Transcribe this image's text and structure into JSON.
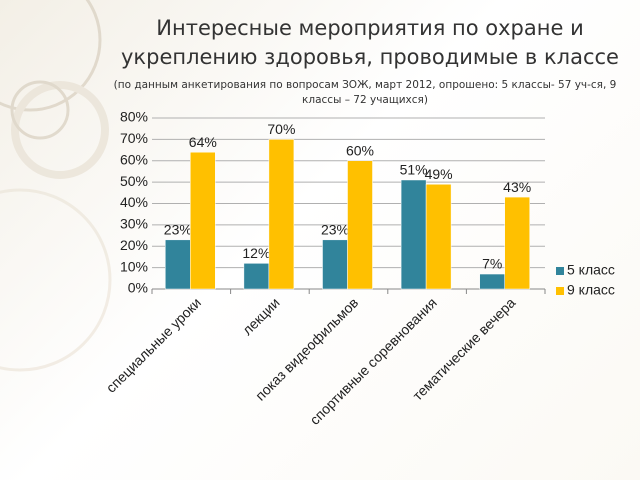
{
  "chart_data": {
    "type": "bar",
    "title": "Интересные мероприятия по охране и укреплению здоровья, проводимые в классе",
    "subtitle": "(по данным анкетирования по вопросам ЗОЖ, март 2012, опрошено: 5 классы- 57 уч-ся, 9 классы – 72 учащихся)",
    "categories": [
      "специальные уроки",
      "лекции",
      "показ видеофильмов",
      "спортивные соревнования",
      "тематические вечера"
    ],
    "series": [
      {
        "name": "5 класс",
        "color": "#31849b",
        "values": [
          23,
          12,
          23,
          51,
          7
        ],
        "value_labels": [
          "23%",
          "12%",
          "23%",
          "51%",
          "7%"
        ]
      },
      {
        "name": "9 класс",
        "color": "#ffc000",
        "values": [
          64,
          70,
          60,
          49,
          43
        ],
        "value_labels": [
          "64%",
          "70%",
          "60%",
          "49%",
          "43%"
        ]
      }
    ],
    "ylim": [
      0,
      80
    ],
    "yticks": [
      {
        "value": 0,
        "label": "0%"
      },
      {
        "value": 10,
        "label": "10%"
      },
      {
        "value": 20,
        "label": "20%"
      },
      {
        "value": 30,
        "label": "30%"
      },
      {
        "value": 40,
        "label": "40%"
      },
      {
        "value": 50,
        "label": "50%"
      },
      {
        "value": 60,
        "label": "60%"
      },
      {
        "value": 70,
        "label": "70%"
      },
      {
        "value": 80,
        "label": "80%"
      }
    ],
    "grid": true,
    "legend": "right"
  }
}
